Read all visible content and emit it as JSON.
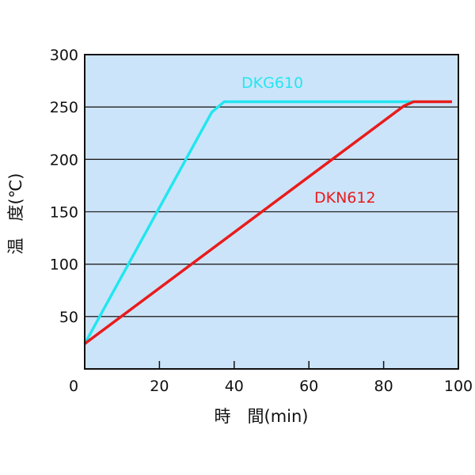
{
  "chart_data": {
    "type": "line",
    "title": "",
    "xlabel": "時　間(min)",
    "ylabel": "温　度(℃)",
    "xlim": [
      0,
      100
    ],
    "ylim": [
      0,
      300
    ],
    "xticks": [
      "0",
      "20",
      "40",
      "60",
      "80",
      "100"
    ],
    "yticks": [
      "50",
      "100",
      "150",
      "200",
      "250",
      "300"
    ],
    "grid": "horizontal",
    "background_color": "#cce4fa",
    "series": [
      {
        "name": "DKG610",
        "color": "#22e6f0",
        "x": [
          0,
          34,
          37.3,
          88
        ],
        "y": [
          24,
          245,
          255,
          255
        ]
      },
      {
        "name": "DKN612",
        "color": "#e81c1c",
        "x": [
          0,
          85.4,
          88,
          98.3
        ],
        "y": [
          24,
          251,
          255,
          255
        ]
      }
    ]
  }
}
